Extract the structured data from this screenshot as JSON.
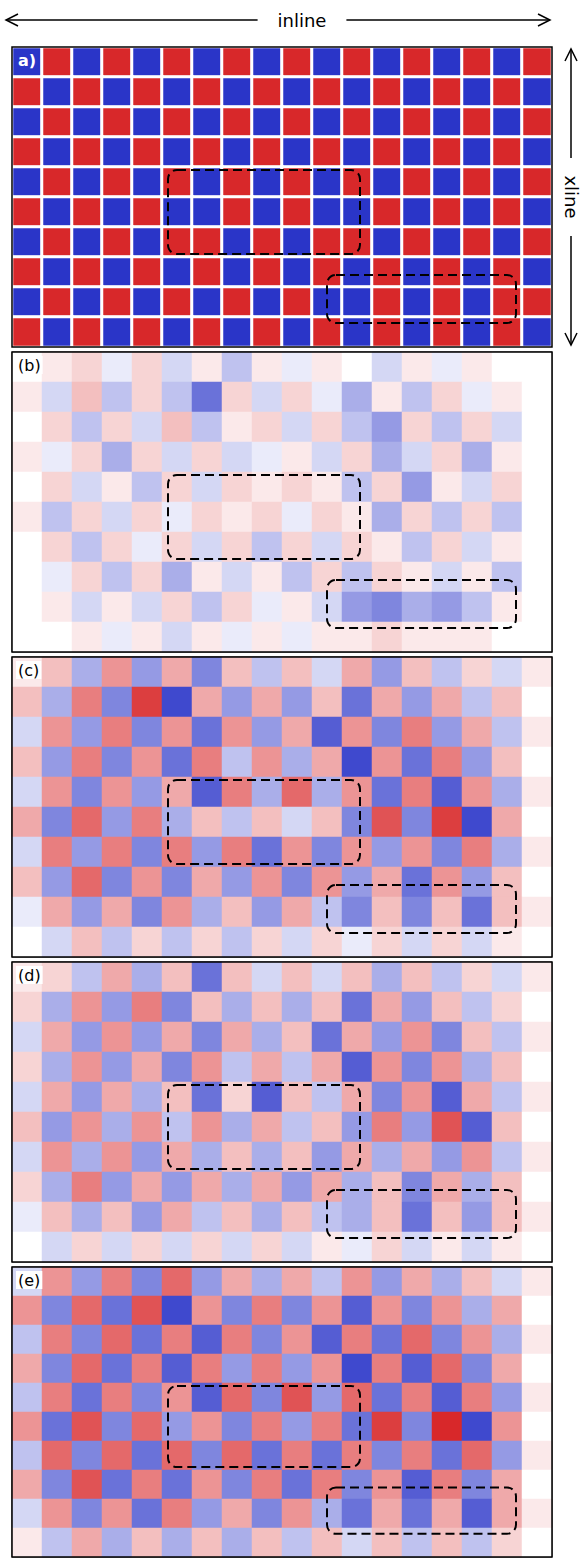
{
  "chart_data": [
    {
      "type": "heatmap",
      "title": "a)",
      "xlabel": "inline",
      "ylabel": "xline",
      "tick_labels": false,
      "color_range": [
        -1,
        1
      ],
      "boxes": [
        {
          "x": [
            5.2,
            11.6
          ],
          "y": [
            4.1,
            6.9
          ]
        },
        {
          "x": [
            10.5,
            16.8
          ],
          "y": [
            7.6,
            9.2
          ]
        }
      ],
      "cells": [
        [
          -1,
          1,
          -1,
          1,
          -1,
          1,
          -1,
          1,
          -1,
          1,
          -1,
          1,
          -1,
          1,
          -1,
          1,
          -1,
          1
        ],
        [
          1,
          -1,
          1,
          -1,
          1,
          -1,
          1,
          -1,
          1,
          -1,
          1,
          -1,
          1,
          -1,
          1,
          -1,
          1,
          -1
        ],
        [
          -1,
          1,
          -1,
          1,
          -1,
          1,
          -1,
          1,
          -1,
          1,
          -1,
          1,
          -1,
          1,
          -1,
          1,
          -1,
          1
        ],
        [
          1,
          -1,
          1,
          -1,
          1,
          -1,
          1,
          -1,
          1,
          -1,
          1,
          -1,
          1,
          -1,
          1,
          -1,
          1,
          -1
        ],
        [
          -1,
          1,
          -1,
          1,
          -1,
          1,
          -1,
          1,
          -1,
          1,
          -1,
          1,
          -1,
          1,
          -1,
          1,
          -1,
          1
        ],
        [
          1,
          -1,
          1,
          -1,
          1,
          -1,
          -1,
          1,
          -1,
          1,
          -1,
          -1,
          1,
          -1,
          1,
          -1,
          1,
          -1
        ],
        [
          -1,
          1,
          -1,
          1,
          -1,
          1,
          1,
          -1,
          1,
          -1,
          1,
          1,
          -1,
          1,
          -1,
          1,
          -1,
          1
        ],
        [
          1,
          -1,
          1,
          -1,
          1,
          -1,
          1,
          -1,
          1,
          -1,
          1,
          -1,
          1,
          -1,
          1,
          -1,
          1,
          -1
        ],
        [
          -1,
          1,
          -1,
          1,
          -1,
          1,
          -1,
          1,
          -1,
          1,
          -1,
          -1,
          1,
          -1,
          1,
          -1,
          1,
          1
        ],
        [
          1,
          -1,
          1,
          -1,
          1,
          -1,
          1,
          -1,
          1,
          -1,
          1,
          -1,
          1,
          -1,
          1,
          -1,
          1,
          -1
        ]
      ]
    },
    {
      "type": "heatmap",
      "title": "(b)",
      "tick_labels": false,
      "color_range": [
        -1,
        1
      ],
      "boxes": [
        {
          "x": [
            5.2,
            11.6
          ],
          "y": [
            4.1,
            6.9
          ]
        },
        {
          "x": [
            10.5,
            16.8
          ],
          "y": [
            7.6,
            9.2
          ]
        }
      ],
      "cells": [
        [
          0,
          0.1,
          0.2,
          -0.1,
          0.2,
          -0.2,
          0.1,
          -0.3,
          0.1,
          -0.1,
          0.1,
          0,
          -0.2,
          0.1,
          -0.1,
          0.1,
          0,
          0
        ],
        [
          0.1,
          -0.2,
          0.3,
          -0.3,
          0.2,
          -0.3,
          -0.7,
          0.2,
          -0.2,
          0.2,
          -0.1,
          -0.4,
          0.1,
          -0.3,
          0.2,
          -0.1,
          0.1,
          0
        ],
        [
          0,
          0.2,
          -0.3,
          0.2,
          -0.2,
          0.3,
          -0.3,
          0.1,
          0.2,
          -0.2,
          0.2,
          -0.3,
          -0.5,
          0.2,
          -0.3,
          0.2,
          -0.2,
          0
        ],
        [
          0.1,
          -0.1,
          0.2,
          -0.4,
          0.2,
          -0.2,
          0.2,
          -0.2,
          -0.1,
          0.1,
          -0.2,
          0.2,
          -0.4,
          -0.2,
          0.2,
          -0.4,
          0.1,
          0
        ],
        [
          0,
          0.2,
          -0.2,
          0.1,
          -0.3,
          0.2,
          -0.2,
          0.2,
          0.1,
          0.2,
          0.1,
          -0.3,
          0.2,
          -0.5,
          0.1,
          -0.2,
          0.2,
          0
        ],
        [
          0.1,
          -0.3,
          0.2,
          -0.2,
          0.2,
          -0.1,
          0.2,
          0.1,
          0.2,
          -0.1,
          0.2,
          0.1,
          -0.4,
          0.2,
          -0.3,
          0.2,
          -0.3,
          0
        ],
        [
          0,
          0.2,
          -0.3,
          0.2,
          -0.1,
          0.2,
          -0.2,
          0.2,
          -0.3,
          0.2,
          -0.2,
          0.2,
          0.1,
          -0.3,
          0.2,
          -0.2,
          0.1,
          0
        ],
        [
          0,
          -0.1,
          0.2,
          -0.3,
          0.2,
          -0.4,
          0.1,
          -0.2,
          0.1,
          -0.3,
          0.2,
          -0.3,
          0.2,
          0.1,
          -0.2,
          0.1,
          -0.3,
          0
        ],
        [
          0,
          0.1,
          -0.2,
          0.1,
          -0.2,
          0.2,
          -0.3,
          0.2,
          -0.1,
          0.1,
          -0.2,
          -0.5,
          -0.6,
          -0.4,
          -0.5,
          -0.3,
          0.1,
          0
        ],
        [
          0,
          0,
          0.1,
          -0.1,
          0.1,
          -0.2,
          0.1,
          -0.1,
          0.1,
          -0.1,
          0.1,
          0.1,
          0.2,
          0.1,
          0.1,
          0.1,
          0,
          0
        ]
      ]
    },
    {
      "type": "heatmap",
      "title": "(c)",
      "tick_labels": false,
      "color_range": [
        -1,
        1
      ],
      "boxes": [
        {
          "x": [
            5.2,
            11.6
          ],
          "y": [
            4.1,
            6.9
          ]
        },
        {
          "x": [
            10.5,
            16.8
          ],
          "y": [
            7.6,
            9.2
          ]
        }
      ],
      "cells": [
        [
          0.1,
          0.3,
          -0.4,
          0.5,
          -0.5,
          0.4,
          -0.6,
          0.3,
          -0.3,
          0.3,
          -0.2,
          0.4,
          -0.5,
          0.3,
          -0.3,
          0.2,
          -0.2,
          0.1
        ],
        [
          0.3,
          -0.4,
          0.6,
          -0.6,
          0.9,
          -0.9,
          0.4,
          -0.5,
          0.4,
          -0.5,
          0.3,
          -0.7,
          0.4,
          -0.5,
          0.4,
          -0.3,
          0.3,
          0
        ],
        [
          -0.2,
          0.5,
          -0.5,
          0.6,
          -0.6,
          0.5,
          -0.7,
          0.5,
          -0.5,
          0.4,
          -0.8,
          0.5,
          -0.6,
          0.6,
          -0.5,
          0.4,
          -0.3,
          0.1
        ],
        [
          0.3,
          -0.5,
          0.6,
          -0.6,
          0.5,
          -0.7,
          0.6,
          -0.3,
          0.5,
          -0.4,
          0.4,
          -0.9,
          0.5,
          -0.7,
          0.6,
          -0.5,
          0.3,
          0
        ],
        [
          -0.2,
          0.5,
          -0.6,
          0.5,
          -0.5,
          0.4,
          -0.8,
          0.6,
          -0.4,
          0.7,
          -0.4,
          0.5,
          -0.7,
          0.6,
          -0.8,
          0.5,
          -0.4,
          0.1
        ],
        [
          0.4,
          -0.6,
          0.7,
          -0.5,
          0.6,
          -0.4,
          0.3,
          -0.3,
          0.3,
          -0.2,
          0.3,
          -0.6,
          0.8,
          -0.6,
          0.9,
          -0.9,
          0.4,
          0
        ],
        [
          -0.2,
          0.6,
          -0.5,
          0.6,
          -0.6,
          0.6,
          -0.5,
          0.6,
          -0.7,
          0.5,
          -0.6,
          0.5,
          -0.5,
          0.5,
          -0.6,
          0.6,
          -0.4,
          0.1
        ],
        [
          0.3,
          -0.5,
          0.7,
          -0.6,
          0.5,
          -0.6,
          0.4,
          -0.5,
          0.5,
          -0.6,
          0.5,
          -0.5,
          0.4,
          -0.7,
          0.5,
          -0.5,
          0.3,
          0
        ],
        [
          -0.1,
          0.4,
          -0.5,
          0.4,
          -0.6,
          0.5,
          -0.4,
          0.3,
          -0.5,
          0.4,
          -0.3,
          -0.6,
          0.3,
          -0.6,
          0.3,
          -0.7,
          0.3,
          0.1
        ],
        [
          0,
          -0.2,
          0.3,
          -0.3,
          0.2,
          -0.3,
          0.2,
          -0.3,
          0.2,
          -0.2,
          0.2,
          -0.1,
          0.2,
          -0.2,
          0.2,
          -0.2,
          0.1,
          0
        ]
      ]
    },
    {
      "type": "heatmap",
      "title": "(d)",
      "tick_labels": false,
      "color_range": [
        -1,
        1
      ],
      "boxes": [
        {
          "x": [
            5.2,
            11.6
          ],
          "y": [
            4.1,
            6.9
          ]
        },
        {
          "x": [
            10.5,
            16.8
          ],
          "y": [
            7.6,
            9.2
          ]
        }
      ],
      "cells": [
        [
          0.1,
          0.2,
          -0.3,
          0.4,
          -0.4,
          0.3,
          -0.7,
          0.3,
          -0.2,
          0.3,
          -0.2,
          0.3,
          -0.4,
          0.3,
          -0.3,
          0.2,
          -0.2,
          0.1
        ],
        [
          0.2,
          -0.4,
          0.5,
          -0.5,
          0.6,
          -0.6,
          0.3,
          -0.4,
          0.3,
          -0.4,
          0.3,
          -0.7,
          0.4,
          -0.5,
          0.3,
          -0.3,
          0.2,
          0
        ],
        [
          -0.2,
          0.4,
          -0.5,
          0.5,
          -0.5,
          0.4,
          -0.6,
          0.4,
          -0.4,
          0.3,
          -0.7,
          0.4,
          -0.5,
          0.5,
          -0.6,
          0.3,
          -0.3,
          0.1
        ],
        [
          0.2,
          -0.4,
          0.5,
          -0.5,
          0.4,
          -0.6,
          0.5,
          -0.3,
          0.4,
          -0.3,
          0.4,
          -0.8,
          0.5,
          -0.6,
          0.5,
          -0.4,
          0.3,
          0
        ],
        [
          -0.2,
          0.4,
          -0.5,
          0.4,
          -0.4,
          0.3,
          -0.7,
          0.2,
          -0.8,
          0.3,
          -0.3,
          0.4,
          -0.6,
          0.5,
          -0.8,
          0.4,
          -0.3,
          0.1
        ],
        [
          0.3,
          -0.5,
          0.5,
          -0.4,
          0.5,
          -0.3,
          0.5,
          -0.4,
          0.4,
          -0.3,
          0.3,
          -0.5,
          0.6,
          -0.5,
          0.8,
          -0.8,
          0.3,
          0
        ],
        [
          -0.2,
          0.5,
          -0.4,
          0.5,
          -0.5,
          0.4,
          -0.4,
          0.3,
          -0.4,
          0.3,
          -0.5,
          0.4,
          -0.4,
          0.4,
          -0.5,
          0.5,
          -0.3,
          0.1
        ],
        [
          0.2,
          -0.4,
          0.6,
          -0.5,
          0.4,
          -0.5,
          0.4,
          -0.4,
          0.4,
          -0.5,
          0.4,
          -0.4,
          0.3,
          -0.6,
          0.4,
          -0.4,
          0.3,
          0
        ],
        [
          -0.1,
          0.3,
          -0.4,
          0.3,
          -0.5,
          0.4,
          -0.3,
          0.3,
          -0.4,
          0.3,
          -0.3,
          -0.4,
          0.3,
          -0.7,
          0.3,
          -0.5,
          0.3,
          0.1
        ],
        [
          0,
          -0.2,
          0.2,
          -0.2,
          0.2,
          -0.2,
          0.2,
          -0.2,
          0.2,
          -0.2,
          0.1,
          -0.1,
          0.2,
          -0.2,
          0.1,
          -0.2,
          0.1,
          0
        ]
      ]
    },
    {
      "type": "heatmap",
      "title": "(e)",
      "tick_labels": false,
      "color_range": [
        -1,
        1
      ],
      "boxes": [
        {
          "x": [
            5.2,
            11.6
          ],
          "y": [
            4.1,
            6.9
          ]
        },
        {
          "x": [
            10.5,
            16.8
          ],
          "y": [
            7.6,
            9.2
          ]
        }
      ],
      "cells": [
        [
          -0.2,
          0.5,
          -0.5,
          0.6,
          -0.6,
          0.7,
          -0.5,
          0.4,
          -0.4,
          0.4,
          -0.3,
          0.5,
          -0.5,
          0.4,
          -0.4,
          0.3,
          -0.2,
          0.1
        ],
        [
          0.5,
          -0.6,
          0.7,
          -0.7,
          0.8,
          -0.9,
          0.5,
          -0.6,
          0.6,
          -0.6,
          0.5,
          -0.8,
          0.5,
          -0.6,
          0.5,
          -0.4,
          0.4,
          0
        ],
        [
          -0.3,
          0.6,
          -0.6,
          0.7,
          -0.7,
          0.6,
          -0.8,
          0.6,
          -0.6,
          0.5,
          -0.8,
          0.6,
          -0.7,
          0.7,
          -0.6,
          0.5,
          -0.4,
          0.1
        ],
        [
          0.4,
          -0.6,
          0.7,
          -0.7,
          0.6,
          -0.8,
          0.6,
          -0.5,
          0.6,
          -0.5,
          0.5,
          -0.9,
          0.6,
          -0.8,
          0.7,
          -0.6,
          0.4,
          0
        ],
        [
          -0.3,
          0.6,
          -0.7,
          0.6,
          -0.6,
          0.5,
          -0.8,
          0.7,
          -0.6,
          0.8,
          -0.5,
          0.7,
          -0.7,
          0.6,
          -0.8,
          0.6,
          -0.5,
          0.1
        ],
        [
          0.5,
          -0.7,
          0.8,
          -0.6,
          0.7,
          -0.5,
          0.5,
          -0.6,
          0.6,
          -0.5,
          0.6,
          -0.7,
          0.9,
          -0.6,
          1.0,
          -0.9,
          0.5,
          0
        ],
        [
          -0.3,
          0.7,
          -0.6,
          0.7,
          -0.7,
          0.7,
          -0.6,
          0.7,
          -0.7,
          0.6,
          -0.7,
          0.6,
          -0.6,
          0.6,
          -0.7,
          0.7,
          -0.5,
          0.1
        ],
        [
          0.4,
          -0.6,
          0.8,
          -0.7,
          0.6,
          -0.7,
          0.5,
          -0.6,
          0.6,
          -0.7,
          0.6,
          -0.6,
          0.5,
          -0.8,
          0.6,
          -0.6,
          0.4,
          0
        ],
        [
          -0.2,
          0.5,
          -0.6,
          0.5,
          -0.7,
          0.6,
          -0.5,
          0.4,
          -0.6,
          0.5,
          -0.4,
          -0.7,
          0.4,
          -0.7,
          0.4,
          -0.8,
          0.4,
          0.1
        ],
        [
          0.1,
          -0.3,
          0.4,
          -0.4,
          0.3,
          -0.4,
          0.3,
          -0.4,
          0.3,
          -0.3,
          0.3,
          -0.2,
          0.3,
          -0.3,
          0.3,
          -0.3,
          0.2,
          0
        ]
      ]
    }
  ]
}
